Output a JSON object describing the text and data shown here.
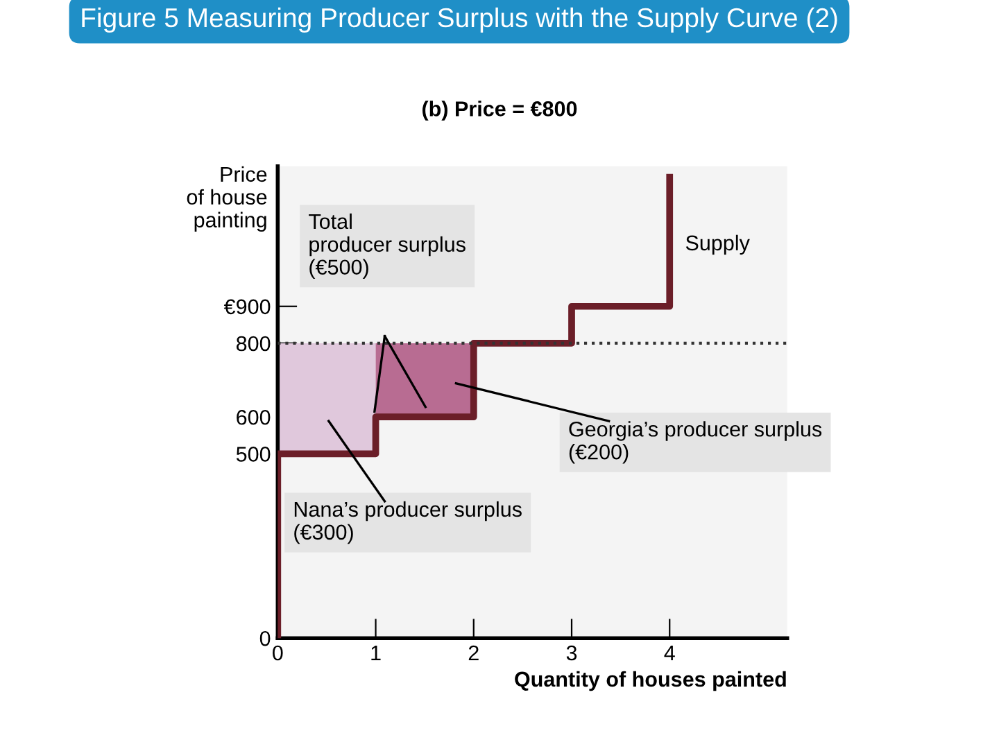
{
  "chart_data": {
    "type": "step",
    "title": "Figure 5 Measuring Producer Surplus with the Supply Curve (2)",
    "subtitle": "(b) Price = €800",
    "xlabel": "Quantity of houses painted",
    "ylabel": "Price of house painting",
    "series": [
      {
        "type": "bar",
        "x": [
          0.5,
          1.5
        ],
        "base": [
          500,
          600
        ],
        "values": [
          300,
          200
        ],
        "colors": [
          "#e0c8dc",
          "#b86c92"
        ]
      },
      {
        "name": "Supply",
        "color": "#6b1e28",
        "x": [
          0,
          0,
          1,
          2,
          3,
          4,
          4
        ],
        "values": [
          0,
          500,
          600,
          800,
          900,
          900,
          1250
        ]
      }
    ],
    "ref_lines": [
      {
        "axis": "y",
        "value": 800,
        "line_style": "dotted",
        "color": "#333333"
      }
    ],
    "annotations": [
      "Total producer surplus (€500)",
      "Georgia’s producer surplus (€200)",
      "Nana’s producer surplus (€300)"
    ],
    "xlim": [
      0,
      5.2
    ],
    "ylim": [
      0,
      1280
    ],
    "xticks": [
      0,
      1,
      2,
      3,
      4
    ],
    "yticks": [
      0,
      500,
      600,
      800,
      {
        "value": 900,
        "label": "€900"
      }
    ],
    "grid": false
  }
}
